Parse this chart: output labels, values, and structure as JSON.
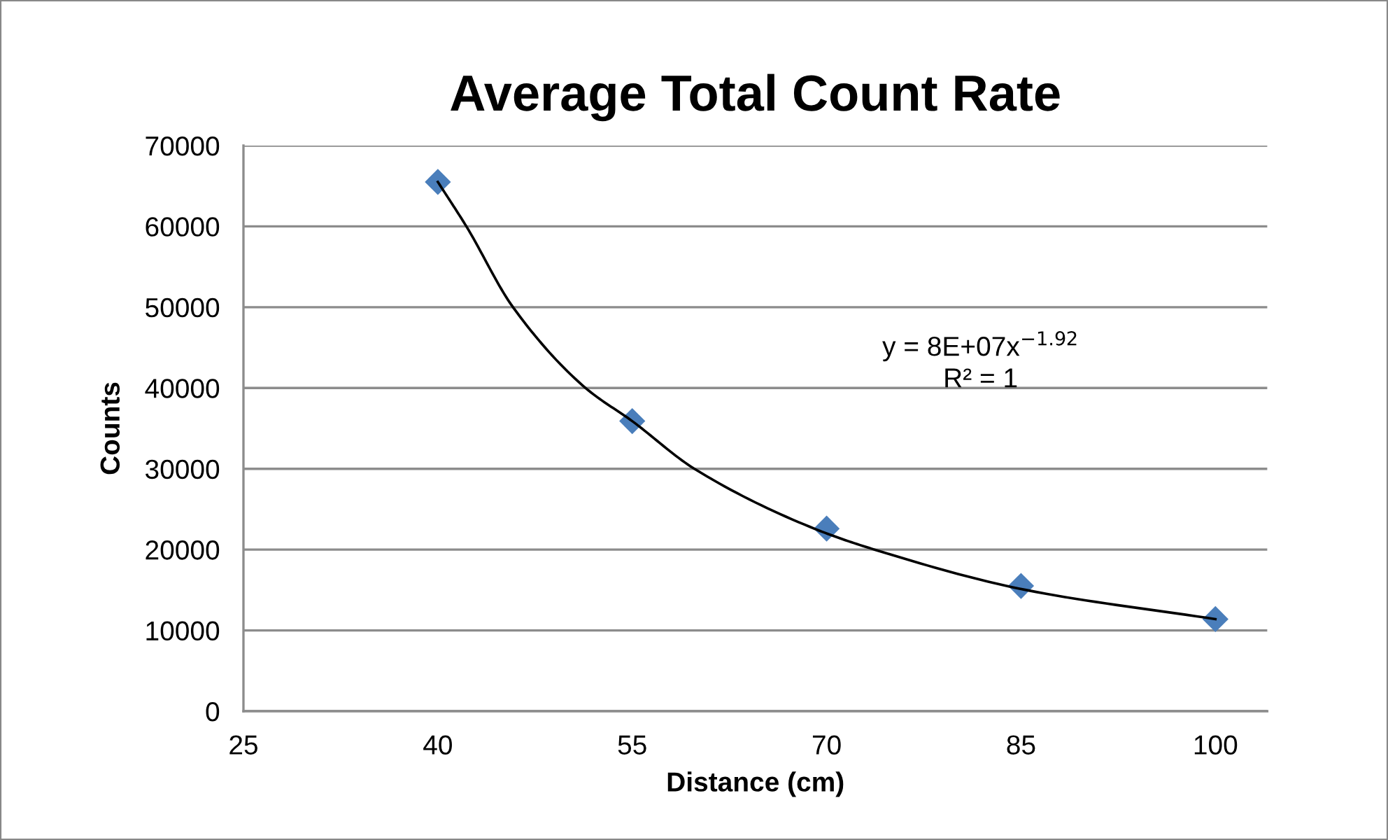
{
  "chart_data": {
    "type": "scatter",
    "title": "Average Total Count Rate",
    "xlabel": "Distance (cm)",
    "ylabel": "Counts",
    "xlim": [
      25,
      104
    ],
    "xticks": [
      25,
      40,
      55,
      70,
      85,
      100
    ],
    "ylim": [
      0,
      70000
    ],
    "yticks": [
      0,
      10000,
      20000,
      30000,
      40000,
      50000,
      60000,
      70000
    ],
    "grid": "y",
    "marker": "diamond",
    "legend": false,
    "annotations": [
      "y = 8E+07x$^{−1.92}$",
      "R² = 1"
    ],
    "series": [
      {
        "color": "#4a7ebb",
        "x": [
          40,
          55,
          70,
          85,
          100
        ],
        "values": [
          65500,
          35900,
          22600,
          15500,
          11400
        ]
      },
      {
        "type": "line",
        "color": "#000000",
        "marker": "none",
        "line_style": "solid",
        "x": [
          40,
          42.2,
          45.8,
          51.4,
          55,
          59.8,
          69.2,
          73.7,
          85.4,
          100
        ],
        "values": [
          65500,
          60000,
          50000,
          40000,
          35900,
          30000,
          22500,
          20000,
          15000,
          11400
        ]
      }
    ]
  }
}
